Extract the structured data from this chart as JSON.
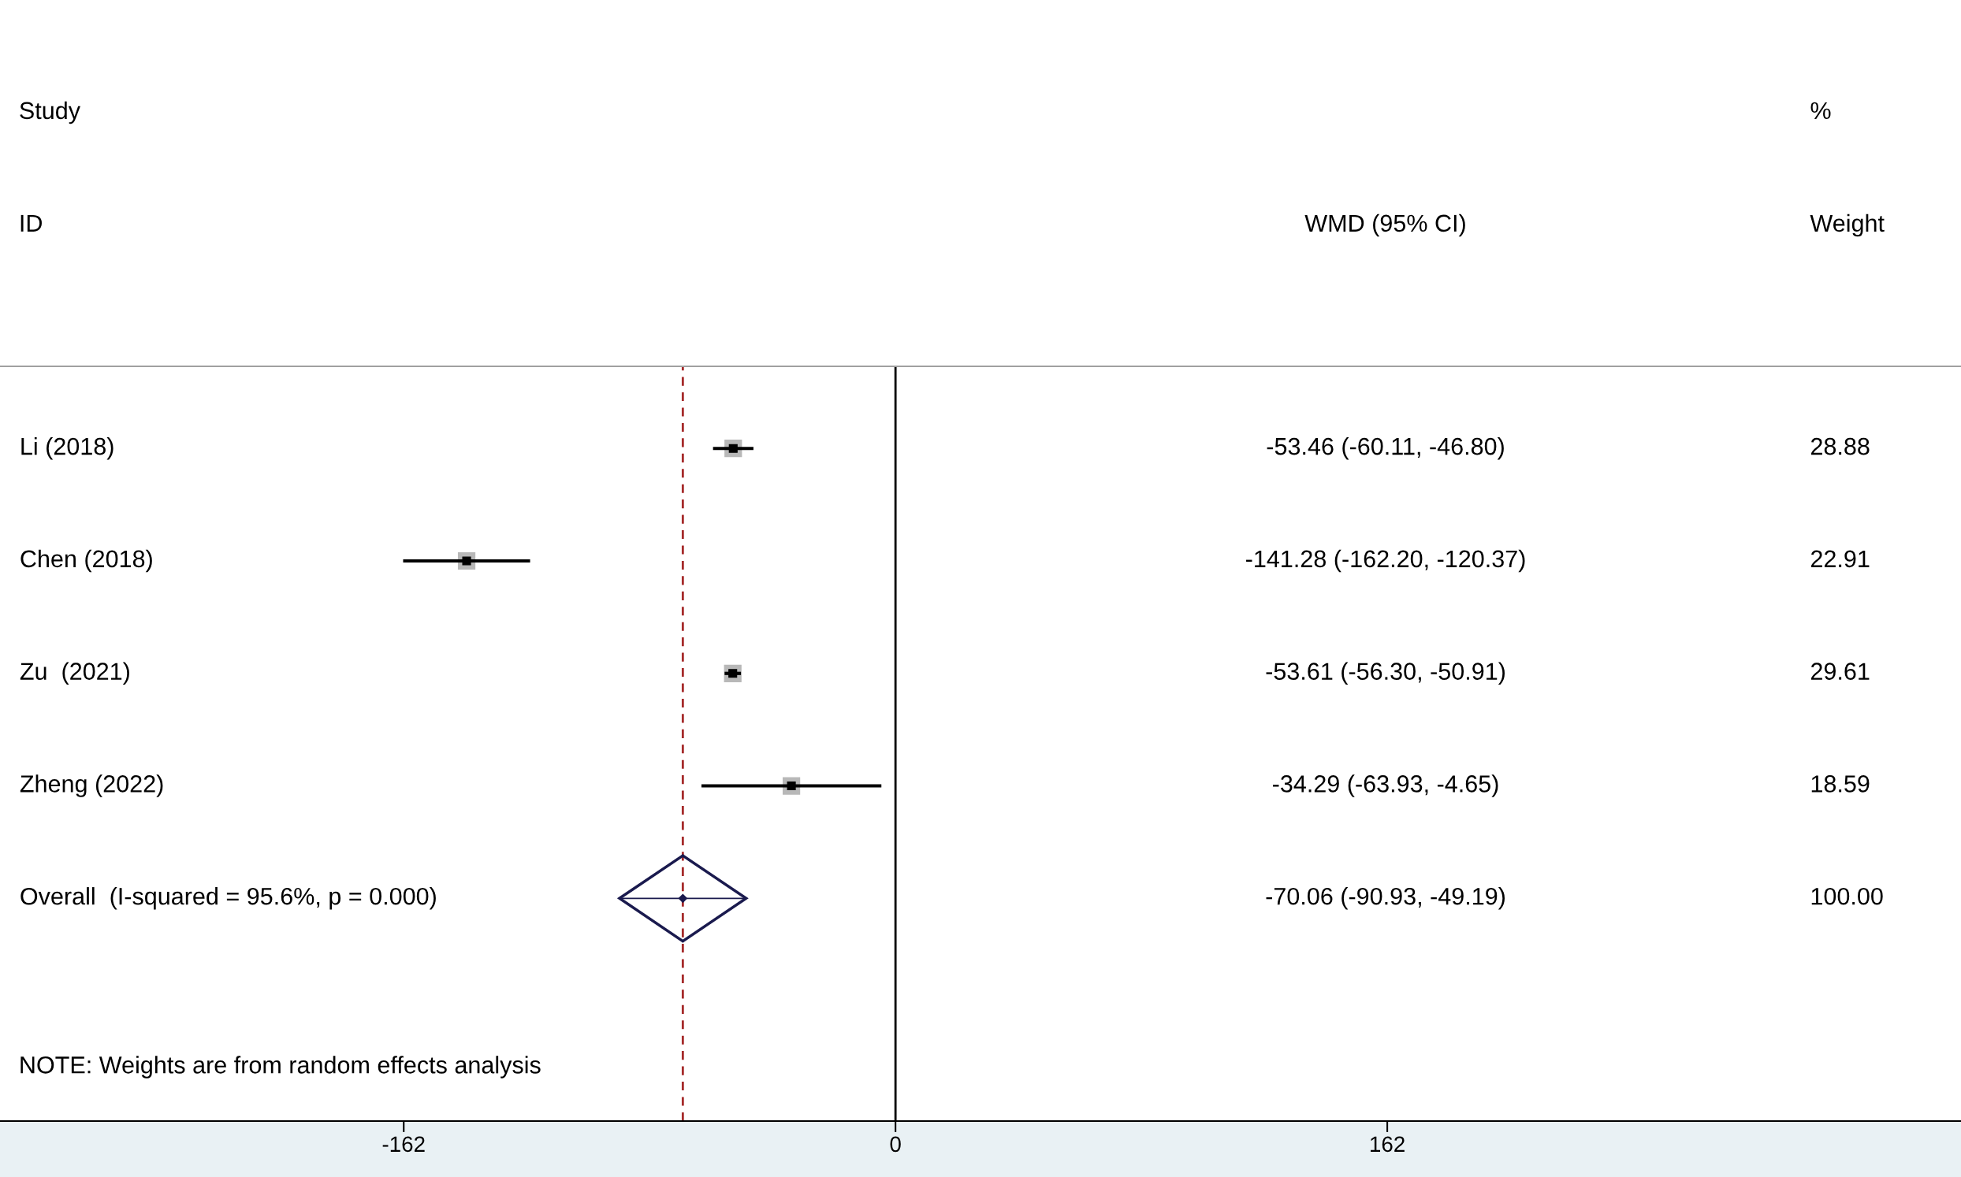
{
  "chart_data": {
    "type": "scatter",
    "orientation": "horizontal",
    "categories": [
      "Li (2018)",
      "Chen (2018)",
      "Zu  (2021)",
      "Zheng (2022)",
      "Overall  (I-squared = 95.6%, p = 0.000)"
    ],
    "series": [
      {
        "color": "#000000",
        "marker": "square",
        "values": [
          -53.46,
          -141.28,
          -53.61,
          -34.29,
          null
        ],
        "errors": [
          [
            -60.11,
            -46.8
          ],
          [
            -162.2,
            -120.37
          ],
          [
            -56.3,
            -50.91
          ],
          [
            -63.93,
            -4.65
          ],
          null
        ]
      },
      {
        "color": "#1a1a4e",
        "marker": "diamond",
        "values": [
          null,
          null,
          null,
          null,
          -70.06
        ],
        "errors": [
          null,
          null,
          null,
          null,
          [
            -90.93,
            -49.19
          ]
        ]
      }
    ],
    "xlim": [
      -295,
      351
    ],
    "xticks": [
      {
        "value": -162,
        "label": "-162"
      },
      0,
      162
    ],
    "ref_lines": [
      {
        "axis": "x",
        "value": 0,
        "color": "#000000",
        "line_style": "solid"
      },
      {
        "axis": "x",
        "value": -70.06,
        "color": "#a52a2a",
        "line_style": "dashed"
      }
    ],
    "annotations": [
      "Study",
      "ID",
      "WMD (95% CI)",
      "%",
      "Weight",
      "-53.46 (-60.11, -46.80)",
      "-141.28 (-162.20, -120.37)",
      "-53.61 (-56.30, -50.91)",
      "-34.29 (-63.93, -4.65)",
      "-70.06 (-90.93, -49.19)",
      "28.88",
      "22.91",
      "29.61",
      "18.59",
      "100.00",
      "NOTE: Weights are from random effects analysis"
    ],
    "grid": false,
    "legend": false
  }
}
